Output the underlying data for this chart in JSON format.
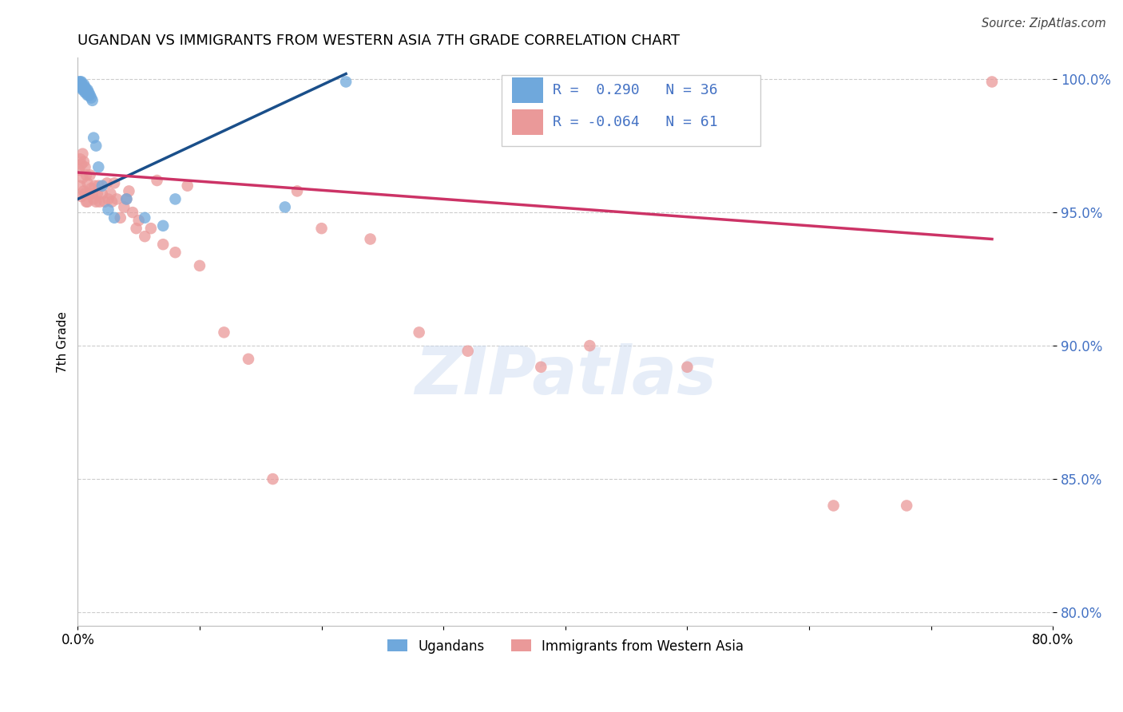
{
  "title": "UGANDAN VS IMMIGRANTS FROM WESTERN ASIA 7TH GRADE CORRELATION CHART",
  "source": "Source: ZipAtlas.com",
  "ylabel": "7th Grade",
  "xlim": [
    0.0,
    0.8
  ],
  "ylim": [
    0.795,
    1.008
  ],
  "yticks": [
    0.8,
    0.85,
    0.9,
    0.95,
    1.0
  ],
  "ytick_labels": [
    "80.0%",
    "85.0%",
    "90.0%",
    "95.0%",
    "100.0%"
  ],
  "xticks": [
    0.0,
    0.1,
    0.2,
    0.3,
    0.4,
    0.5,
    0.6,
    0.7,
    0.8
  ],
  "xtick_labels": [
    "0.0%",
    "",
    "",
    "",
    "",
    "",
    "",
    "",
    "80.0%"
  ],
  "blue_R": 0.29,
  "blue_N": 36,
  "pink_R": -0.064,
  "pink_N": 61,
  "blue_color": "#6fa8dc",
  "pink_color": "#ea9999",
  "blue_line_color": "#1a4f8a",
  "pink_line_color": "#cc3366",
  "legend_label_blue": "Ugandans",
  "legend_label_pink": "Immigrants from Western Asia",
  "blue_line_x": [
    0.0,
    0.22
  ],
  "blue_line_y": [
    0.955,
    1.002
  ],
  "pink_line_x": [
    0.0,
    0.75
  ],
  "pink_line_y": [
    0.965,
    0.94
  ],
  "blue_x": [
    0.001,
    0.002,
    0.002,
    0.002,
    0.003,
    0.003,
    0.003,
    0.004,
    0.004,
    0.005,
    0.005,
    0.005,
    0.006,
    0.006,
    0.006,
    0.007,
    0.007,
    0.008,
    0.008,
    0.009,
    0.009,
    0.01,
    0.011,
    0.012,
    0.013,
    0.015,
    0.017,
    0.02,
    0.025,
    0.03,
    0.04,
    0.055,
    0.07,
    0.08,
    0.17,
    0.22
  ],
  "blue_y": [
    0.999,
    0.999,
    0.998,
    0.997,
    0.999,
    0.998,
    0.997,
    0.997,
    0.996,
    0.998,
    0.997,
    0.996,
    0.997,
    0.996,
    0.995,
    0.996,
    0.995,
    0.996,
    0.994,
    0.995,
    0.994,
    0.994,
    0.993,
    0.992,
    0.978,
    0.975,
    0.967,
    0.96,
    0.951,
    0.948,
    0.955,
    0.948,
    0.945,
    0.955,
    0.952,
    0.999
  ],
  "pink_x": [
    0.001,
    0.002,
    0.002,
    0.003,
    0.003,
    0.004,
    0.004,
    0.005,
    0.005,
    0.006,
    0.006,
    0.007,
    0.007,
    0.008,
    0.008,
    0.009,
    0.01,
    0.011,
    0.012,
    0.013,
    0.014,
    0.015,
    0.016,
    0.017,
    0.018,
    0.02,
    0.022,
    0.024,
    0.025,
    0.027,
    0.028,
    0.03,
    0.032,
    0.035,
    0.038,
    0.04,
    0.042,
    0.045,
    0.048,
    0.05,
    0.055,
    0.06,
    0.065,
    0.07,
    0.08,
    0.09,
    0.1,
    0.12,
    0.14,
    0.16,
    0.18,
    0.2,
    0.24,
    0.28,
    0.32,
    0.38,
    0.42,
    0.5,
    0.62,
    0.68,
    0.75
  ],
  "pink_y": [
    0.966,
    0.97,
    0.96,
    0.968,
    0.956,
    0.972,
    0.963,
    0.969,
    0.958,
    0.967,
    0.957,
    0.964,
    0.954,
    0.961,
    0.954,
    0.957,
    0.964,
    0.959,
    0.957,
    0.955,
    0.96,
    0.954,
    0.957,
    0.96,
    0.954,
    0.957,
    0.954,
    0.961,
    0.955,
    0.957,
    0.954,
    0.961,
    0.955,
    0.948,
    0.952,
    0.955,
    0.958,
    0.95,
    0.944,
    0.947,
    0.941,
    0.944,
    0.962,
    0.938,
    0.935,
    0.96,
    0.93,
    0.905,
    0.895,
    0.85,
    0.958,
    0.944,
    0.94,
    0.905,
    0.898,
    0.892,
    0.9,
    0.892,
    0.84,
    0.84,
    0.999
  ]
}
